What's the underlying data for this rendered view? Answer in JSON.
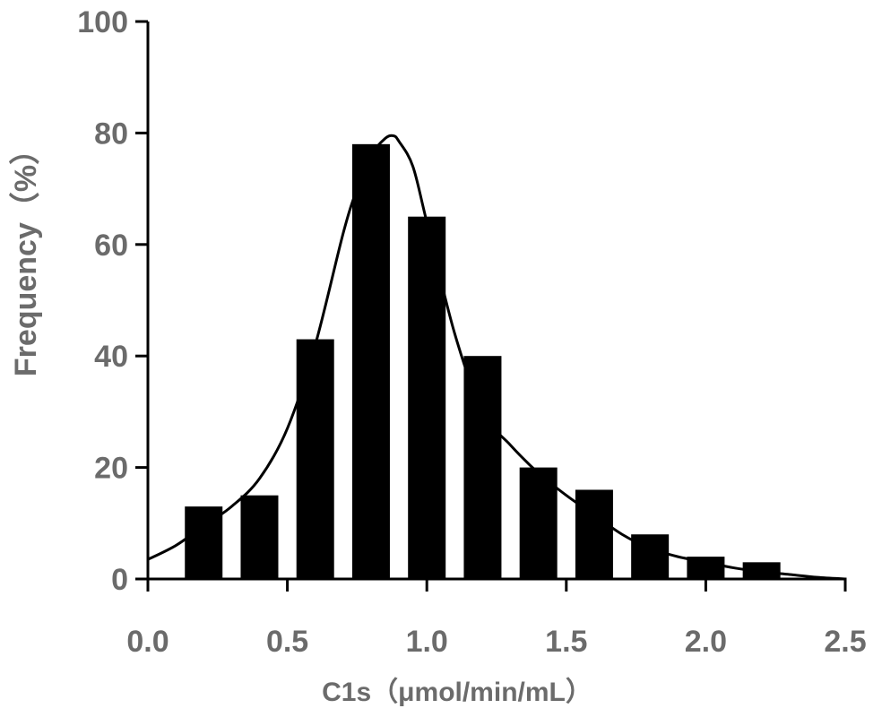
{
  "chart_data": {
    "type": "bar",
    "xlabel": "C1s（μmol/min/mL）",
    "ylabel": "Frequency（%）",
    "xlim": [
      0.0,
      2.5
    ],
    "ylim": [
      0,
      100
    ],
    "x_ticks": [
      "0.0",
      "0.5",
      "1.0",
      "1.5",
      "2.0",
      "2.5"
    ],
    "y_ticks": [
      "0",
      "20",
      "40",
      "60",
      "80",
      "100"
    ],
    "grid": false,
    "bar_color": "#000000",
    "series": [
      {
        "type": "bar",
        "x": [
          0.2,
          0.4,
          0.6,
          0.8,
          1.0,
          1.2,
          1.4,
          1.6,
          1.8,
          2.0,
          2.2
        ],
        "values": [
          13,
          15,
          43,
          78,
          65,
          40,
          20,
          16,
          8,
          4,
          3
        ]
      },
      {
        "type": "line",
        "x": [
          0.0,
          0.1,
          0.2,
          0.3,
          0.4,
          0.5,
          0.6,
          0.7,
          0.75,
          0.8,
          0.85,
          0.88,
          0.9,
          0.95,
          1.0,
          1.1,
          1.2,
          1.3,
          1.4,
          1.5,
          1.6,
          1.7,
          1.8,
          1.9,
          2.0,
          2.1,
          2.2,
          2.3,
          2.4,
          2.5
        ],
        "values": [
          3.5,
          6,
          9.5,
          13,
          18,
          27,
          42,
          62,
          70,
          76,
          79,
          79.5,
          78.5,
          74,
          64,
          44,
          30,
          24,
          19,
          15,
          11.5,
          8,
          5.5,
          4,
          3,
          2,
          1.3,
          0.8,
          0.3,
          0
        ]
      }
    ]
  }
}
